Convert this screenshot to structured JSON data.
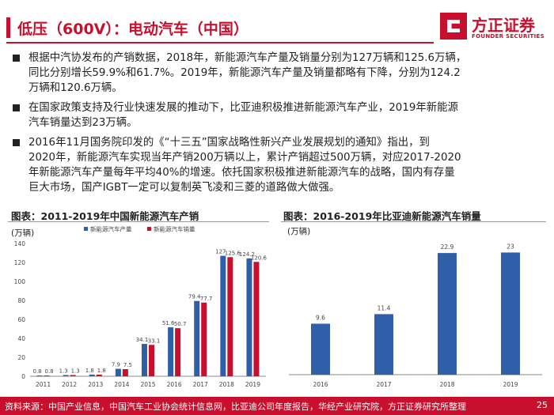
{
  "header": {
    "title": "低压（600V）：电动汽车（中国）",
    "logo_cn": "方正证券",
    "logo_en": "FOUNDER SECURITIES"
  },
  "bullets": [
    {
      "lines": [
        "根据中汽协发布的产销数据，2018年，新能源汽车产量及销量分别为127万辆和125.6万辆，",
        "同比分别增长59.9%和61.7%。2019年，新能源汽车产量及销量都略有下降，分别为124.2",
        "万辆和120.6万辆。"
      ]
    },
    {
      "lines": [
        "在国家政策支持及行业快速发展的推动下，比亚迪积极推进新能源汽车产业，2019年新能源",
        "汽车销量达到23万辆。"
      ]
    },
    {
      "lines": [
        "2016年11月国务院印发的《“十三五”国家战略性新兴产业发展规划的通知》指出，到",
        "2020年，新能源汽车实现当年产销200万辆以上，累计产销超过500万辆，对应2017-2020",
        "年新能源汽车产量每年平均40%的增速。依托国家积极推进新能源汽车的战略，国内有存量",
        "巨大市场，国产IGBT一定可以复制英飞凌和三菱的道路做大做强。"
      ]
    }
  ],
  "chart_data": [
    {
      "type": "bar",
      "title": "图表：2011-2019年中国新能源汽车产销",
      "ylabel": "(万辆)",
      "categories": [
        "2011",
        "2012",
        "2013",
        "2014",
        "2015",
        "2016",
        "2017",
        "2018",
        "2019"
      ],
      "series": [
        {
          "name": "新能源汽车产量",
          "color": "#2e5fa8",
          "values": [
            0.8,
            1.3,
            1.8,
            7.9,
            34.1,
            51.6,
            79.4,
            127,
            124.2
          ],
          "labels": [
            "0.8",
            "1.3",
            "1.8",
            "7.9",
            "34.1",
            "51.6",
            "79.4",
            "127",
            "124.2"
          ]
        },
        {
          "name": "新能源汽车销量",
          "color": "#c8102e",
          "values": [
            0.8,
            1.3,
            1.8,
            7.5,
            33.1,
            50.7,
            77.7,
            125.6,
            120.6
          ],
          "labels": [
            "0.8",
            "1.3",
            "1.8",
            "7.5",
            "33.1",
            "50.7",
            "77.7",
            "125.6",
            "120.6"
          ]
        }
      ],
      "yticks": [
        "0",
        "20",
        "40",
        "60",
        "80",
        "100",
        "120",
        "140"
      ],
      "ylim": [
        0,
        140
      ],
      "legend": "top-center",
      "grid": false
    },
    {
      "type": "bar",
      "title": "图表：2016-2019年比亚迪新能源汽车销量",
      "ylabel": "(万辆)",
      "categories": [
        "2016",
        "2017",
        "2018",
        "2019"
      ],
      "series": [
        {
          "color": "#2e5fa8",
          "values": [
            9.6,
            11.4,
            22.9,
            23
          ],
          "labels": [
            "9.6",
            "11.4",
            "22.9",
            "23"
          ]
        }
      ],
      "ylim": [
        0,
        25
      ],
      "grid": false
    }
  ],
  "footer": {
    "source": "资料来源：中国产业信息，中国汽车工业协会统计信息网，比亚迪公司年度报告，华经产业研究院，方正证券研究所整理",
    "page": "25"
  }
}
